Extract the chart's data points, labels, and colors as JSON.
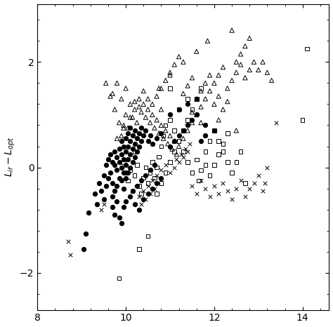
{
  "xlim": [
    8,
    14.6
  ],
  "ylim": [
    -2.7,
    3.1
  ],
  "xticks": [
    8,
    10,
    12,
    14
  ],
  "yticks": [
    -2,
    0,
    2
  ],
  "filled_circles": [
    [
      9.05,
      -1.55
    ],
    [
      9.1,
      -1.25
    ],
    [
      9.15,
      -0.85
    ],
    [
      9.3,
      -0.5
    ],
    [
      9.35,
      -0.7
    ],
    [
      9.4,
      -0.3
    ],
    [
      9.45,
      -0.45
    ],
    [
      9.5,
      -0.15
    ],
    [
      9.5,
      -0.6
    ],
    [
      9.55,
      0.05
    ],
    [
      9.55,
      -0.35
    ],
    [
      9.6,
      0.15
    ],
    [
      9.6,
      -0.2
    ],
    [
      9.65,
      0.25
    ],
    [
      9.65,
      -0.1
    ],
    [
      9.7,
      0.1
    ],
    [
      9.7,
      -0.3
    ],
    [
      9.7,
      -0.55
    ],
    [
      9.75,
      0.3
    ],
    [
      9.75,
      0.05
    ],
    [
      9.75,
      -0.45
    ],
    [
      9.8,
      0.2
    ],
    [
      9.8,
      -0.05
    ],
    [
      9.8,
      -0.35
    ],
    [
      9.85,
      0.35
    ],
    [
      9.85,
      0.1
    ],
    [
      9.85,
      -0.2
    ],
    [
      9.9,
      0.5
    ],
    [
      9.9,
      0.25
    ],
    [
      9.9,
      0.0
    ],
    [
      9.9,
      -0.25
    ],
    [
      9.95,
      0.4
    ],
    [
      9.95,
      0.15
    ],
    [
      9.95,
      -0.1
    ],
    [
      9.95,
      -0.4
    ],
    [
      10.0,
      0.55
    ],
    [
      10.0,
      0.3
    ],
    [
      10.0,
      0.05
    ],
    [
      10.0,
      -0.2
    ],
    [
      10.05,
      0.65
    ],
    [
      10.05,
      0.4
    ],
    [
      10.05,
      0.15
    ],
    [
      10.05,
      -0.1
    ],
    [
      10.1,
      0.75
    ],
    [
      10.1,
      0.5
    ],
    [
      10.1,
      0.25
    ],
    [
      10.1,
      0.0
    ],
    [
      10.15,
      0.6
    ],
    [
      10.15,
      0.35
    ],
    [
      10.15,
      0.1
    ],
    [
      10.2,
      0.7
    ],
    [
      10.2,
      0.45
    ],
    [
      10.2,
      0.2
    ],
    [
      10.25,
      0.55
    ],
    [
      10.25,
      0.3
    ],
    [
      10.3,
      0.65
    ],
    [
      10.3,
      0.4
    ],
    [
      10.35,
      0.75
    ],
    [
      10.35,
      0.5
    ],
    [
      10.4,
      0.6
    ],
    [
      10.45,
      0.7
    ],
    [
      10.5,
      0.5
    ],
    [
      10.55,
      0.6
    ],
    [
      10.6,
      0.45
    ],
    [
      10.7,
      0.55
    ],
    [
      10.8,
      0.65
    ],
    [
      11.0,
      0.4
    ],
    [
      11.1,
      0.5
    ],
    [
      11.2,
      0.6
    ],
    [
      11.3,
      0.7
    ],
    [
      11.4,
      0.8
    ],
    [
      11.5,
      0.9
    ],
    [
      11.6,
      1.0
    ],
    [
      11.7,
      0.5
    ],
    [
      11.8,
      0.6
    ],
    [
      9.85,
      -0.95
    ],
    [
      9.9,
      -1.05
    ],
    [
      9.95,
      -0.75
    ],
    [
      10.0,
      -0.65
    ],
    [
      10.1,
      -0.55
    ],
    [
      10.2,
      -0.7
    ],
    [
      10.3,
      -0.8
    ],
    [
      10.4,
      -0.6
    ],
    [
      10.5,
      -0.5
    ],
    [
      10.6,
      -0.4
    ],
    [
      10.7,
      -0.3
    ],
    [
      10.8,
      -0.2
    ],
    [
      9.7,
      -0.75
    ],
    [
      9.75,
      -0.9
    ],
    [
      9.8,
      -0.65
    ],
    [
      10.15,
      -0.45
    ],
    [
      10.25,
      -0.35
    ],
    [
      10.35,
      -0.25
    ],
    [
      10.45,
      -0.15
    ],
    [
      10.55,
      -0.05
    ],
    [
      10.65,
      0.05
    ],
    [
      11.0,
      1.0
    ],
    [
      11.2,
      1.1
    ],
    [
      11.4,
      1.2
    ],
    [
      11.6,
      1.3
    ],
    [
      11.8,
      0.8
    ],
    [
      12.0,
      0.7
    ]
  ],
  "triangles": [
    [
      9.55,
      1.6
    ],
    [
      9.65,
      1.35
    ],
    [
      9.75,
      1.1
    ],
    [
      9.85,
      0.85
    ],
    [
      9.9,
      0.6
    ],
    [
      9.95,
      0.8
    ],
    [
      10.0,
      1.0
    ],
    [
      10.05,
      0.75
    ],
    [
      10.1,
      1.2
    ],
    [
      10.15,
      0.95
    ],
    [
      10.2,
      1.1
    ],
    [
      10.25,
      0.85
    ],
    [
      10.3,
      1.3
    ],
    [
      10.35,
      1.05
    ],
    [
      10.4,
      1.2
    ],
    [
      10.45,
      0.95
    ],
    [
      10.5,
      1.1
    ],
    [
      10.55,
      0.85
    ],
    [
      10.6,
      1.0
    ],
    [
      10.65,
      0.75
    ],
    [
      10.7,
      0.9
    ],
    [
      10.75,
      0.65
    ],
    [
      10.8,
      0.8
    ],
    [
      10.85,
      0.55
    ],
    [
      10.9,
      0.7
    ],
    [
      10.95,
      0.45
    ],
    [
      11.0,
      0.6
    ],
    [
      11.05,
      0.35
    ],
    [
      11.1,
      0.5
    ],
    [
      11.15,
      0.25
    ],
    [
      11.2,
      0.4
    ],
    [
      11.3,
      0.55
    ],
    [
      11.4,
      0.7
    ],
    [
      11.5,
      0.85
    ],
    [
      11.6,
      1.0
    ],
    [
      11.7,
      1.15
    ],
    [
      11.8,
      1.3
    ],
    [
      11.9,
      1.45
    ],
    [
      12.0,
      1.6
    ],
    [
      12.1,
      1.75
    ],
    [
      12.2,
      1.9
    ],
    [
      12.3,
      1.5
    ],
    [
      12.4,
      1.65
    ],
    [
      12.5,
      1.8
    ],
    [
      12.6,
      1.95
    ],
    [
      12.7,
      1.7
    ],
    [
      12.8,
      1.85
    ],
    [
      12.9,
      2.0
    ],
    [
      13.0,
      1.85
    ],
    [
      13.1,
      2.0
    ],
    [
      13.2,
      1.8
    ],
    [
      13.3,
      1.65
    ],
    [
      10.6,
      1.2
    ],
    [
      10.7,
      1.35
    ],
    [
      10.8,
      1.5
    ],
    [
      10.9,
      1.65
    ],
    [
      11.0,
      1.8
    ],
    [
      11.1,
      1.95
    ],
    [
      11.2,
      2.1
    ],
    [
      11.3,
      1.4
    ],
    [
      11.4,
      1.55
    ],
    [
      11.5,
      1.7
    ],
    [
      11.6,
      1.3
    ],
    [
      11.7,
      1.45
    ],
    [
      11.8,
      1.6
    ],
    [
      11.9,
      1.75
    ],
    [
      12.0,
      1.2
    ],
    [
      12.1,
      1.35
    ],
    [
      12.2,
      1.1
    ],
    [
      12.3,
      1.25
    ],
    [
      12.4,
      2.6
    ],
    [
      12.5,
      2.0
    ],
    [
      12.6,
      2.15
    ],
    [
      12.7,
      2.3
    ],
    [
      12.8,
      2.45
    ],
    [
      11.85,
      2.4
    ],
    [
      11.6,
      2.2
    ],
    [
      11.3,
      2.0
    ],
    [
      11.0,
      1.75
    ],
    [
      10.75,
      1.5
    ],
    [
      10.5,
      1.3
    ],
    [
      10.3,
      1.15
    ],
    [
      10.1,
      0.95
    ],
    [
      9.95,
      0.75
    ],
    [
      9.8,
      0.55
    ],
    [
      9.7,
      1.4
    ],
    [
      9.8,
      1.6
    ],
    [
      9.9,
      1.3
    ],
    [
      10.0,
      1.5
    ],
    [
      10.2,
      1.25
    ],
    [
      10.4,
      1.45
    ],
    [
      10.8,
      1.1
    ],
    [
      11.5,
      1.05
    ],
    [
      11.7,
      0.85
    ],
    [
      12.1,
      0.9
    ],
    [
      12.5,
      0.7
    ]
  ],
  "squares": [
    [
      9.85,
      -2.1
    ],
    [
      10.3,
      -1.55
    ],
    [
      10.5,
      -1.3
    ],
    [
      10.7,
      -0.5
    ],
    [
      10.8,
      -0.3
    ],
    [
      10.9,
      -0.1
    ],
    [
      11.0,
      0.1
    ],
    [
      11.1,
      0.3
    ],
    [
      11.2,
      0.5
    ],
    [
      11.3,
      0.7
    ],
    [
      11.4,
      0.9
    ],
    [
      11.5,
      1.1
    ],
    [
      11.6,
      1.3
    ],
    [
      11.7,
      1.5
    ],
    [
      11.8,
      0.3
    ],
    [
      11.9,
      0.5
    ],
    [
      12.0,
      0.7
    ],
    [
      12.1,
      0.5
    ],
    [
      12.2,
      0.3
    ],
    [
      12.3,
      0.1
    ],
    [
      12.4,
      -0.1
    ],
    [
      12.5,
      0.1
    ],
    [
      12.6,
      0.3
    ],
    [
      12.7,
      -0.3
    ],
    [
      10.05,
      -0.25
    ],
    [
      10.1,
      -0.05
    ],
    [
      10.15,
      -0.45
    ],
    [
      10.2,
      -0.15
    ],
    [
      10.25,
      0.05
    ],
    [
      10.3,
      -0.35
    ],
    [
      10.35,
      -0.5
    ],
    [
      10.4,
      -0.2
    ],
    [
      10.45,
      0.0
    ],
    [
      10.5,
      -0.3
    ],
    [
      10.55,
      -0.1
    ],
    [
      10.6,
      0.1
    ],
    [
      10.65,
      -0.2
    ],
    [
      10.7,
      0.0
    ],
    [
      10.75,
      0.2
    ],
    [
      10.8,
      0.4
    ],
    [
      10.85,
      0.6
    ],
    [
      10.9,
      0.8
    ],
    [
      11.0,
      0.9
    ],
    [
      11.1,
      0.7
    ],
    [
      11.2,
      0.5
    ],
    [
      11.3,
      0.3
    ],
    [
      11.4,
      0.1
    ],
    [
      11.5,
      -0.1
    ],
    [
      11.6,
      0.15
    ],
    [
      11.65,
      -0.25
    ],
    [
      11.7,
      -0.05
    ],
    [
      11.8,
      0.05
    ],
    [
      11.9,
      -0.15
    ],
    [
      12.0,
      0.05
    ],
    [
      12.1,
      0.25
    ],
    [
      12.2,
      0.45
    ],
    [
      12.3,
      0.65
    ],
    [
      14.1,
      2.25
    ],
    [
      14.0,
      0.9
    ],
    [
      10.0,
      -0.1
    ],
    [
      9.95,
      0.1
    ],
    [
      10.2,
      0.3
    ],
    [
      11.4,
      1.3
    ],
    [
      11.2,
      1.1
    ],
    [
      11.0,
      1.5
    ]
  ],
  "crosses": [
    [
      8.7,
      -1.4
    ],
    [
      8.75,
      -1.65
    ],
    [
      9.45,
      -0.8
    ],
    [
      9.5,
      -0.7
    ],
    [
      10.3,
      -0.55
    ],
    [
      10.4,
      -0.45
    ],
    [
      10.5,
      -0.35
    ],
    [
      10.6,
      -0.25
    ],
    [
      10.7,
      -0.15
    ],
    [
      10.8,
      -0.05
    ],
    [
      10.9,
      0.05
    ],
    [
      11.0,
      -0.1
    ],
    [
      11.1,
      0.0
    ],
    [
      11.2,
      0.1
    ],
    [
      11.3,
      0.2
    ],
    [
      11.4,
      0.3
    ],
    [
      11.5,
      -0.35
    ],
    [
      11.6,
      -0.5
    ],
    [
      11.7,
      -0.25
    ],
    [
      11.8,
      -0.4
    ],
    [
      11.9,
      -0.55
    ],
    [
      12.0,
      -0.35
    ],
    [
      12.1,
      -0.5
    ],
    [
      12.2,
      -0.3
    ],
    [
      12.3,
      -0.45
    ],
    [
      12.4,
      -0.6
    ],
    [
      12.5,
      -0.4
    ],
    [
      12.6,
      -0.25
    ],
    [
      12.7,
      -0.55
    ],
    [
      12.8,
      -0.4
    ],
    [
      12.9,
      -0.3
    ],
    [
      13.0,
      -0.15
    ],
    [
      13.1,
      -0.45
    ],
    [
      13.15,
      -0.3
    ],
    [
      13.2,
      0.0
    ],
    [
      13.4,
      0.85
    ],
    [
      10.35,
      -0.7
    ],
    [
      10.45,
      -0.6
    ],
    [
      10.55,
      -0.5
    ],
    [
      10.65,
      -0.4
    ],
    [
      11.15,
      0.15
    ],
    [
      11.25,
      0.25
    ],
    [
      11.35,
      0.35
    ],
    [
      11.45,
      0.45
    ]
  ]
}
